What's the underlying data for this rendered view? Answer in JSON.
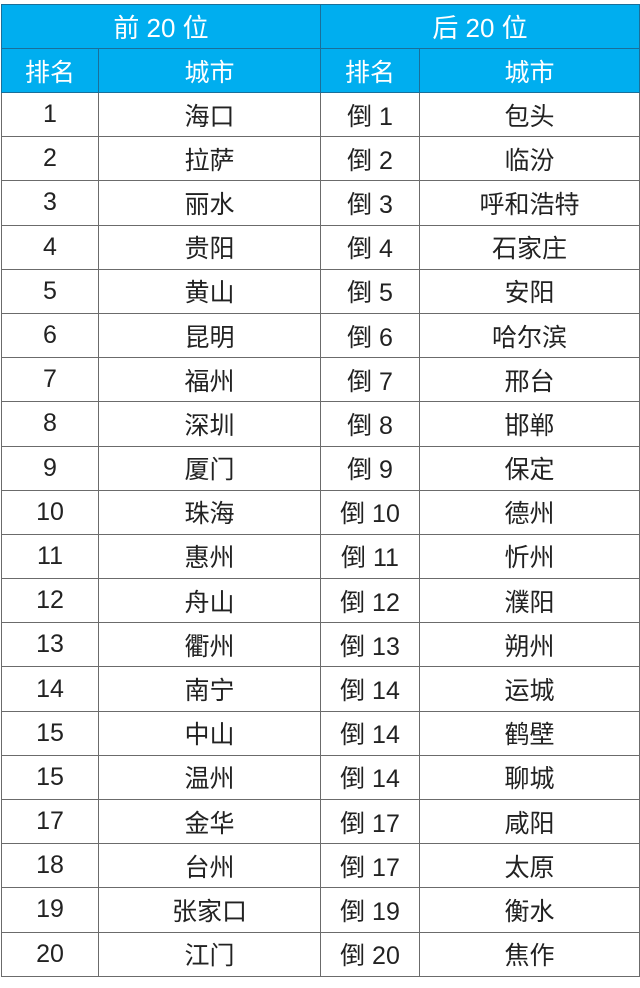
{
  "header": {
    "top_group": "前 20 位",
    "bottom_group": "后 20 位",
    "rank_label": "排名",
    "city_label": "城市"
  },
  "colors": {
    "header_bg": "#00aeef",
    "header_text": "#ffffff"
  },
  "rows": [
    {
      "top_rank": "1",
      "top_city": "海口",
      "bottom_rank": "倒 1",
      "bottom_city": "包头"
    },
    {
      "top_rank": "2",
      "top_city": "拉萨",
      "bottom_rank": "倒 2",
      "bottom_city": "临汾"
    },
    {
      "top_rank": "3",
      "top_city": "丽水",
      "bottom_rank": "倒 3",
      "bottom_city": "呼和浩特"
    },
    {
      "top_rank": "4",
      "top_city": "贵阳",
      "bottom_rank": "倒 4",
      "bottom_city": "石家庄"
    },
    {
      "top_rank": "5",
      "top_city": "黄山",
      "bottom_rank": "倒 5",
      "bottom_city": "安阳"
    },
    {
      "top_rank": "6",
      "top_city": "昆明",
      "bottom_rank": "倒 6",
      "bottom_city": "哈尔滨"
    },
    {
      "top_rank": "7",
      "top_city": "福州",
      "bottom_rank": "倒 7",
      "bottom_city": "邢台"
    },
    {
      "top_rank": "8",
      "top_city": "深圳",
      "bottom_rank": "倒 8",
      "bottom_city": "邯郸"
    },
    {
      "top_rank": "9",
      "top_city": "厦门",
      "bottom_rank": "倒 9",
      "bottom_city": "保定"
    },
    {
      "top_rank": "10",
      "top_city": "珠海",
      "bottom_rank": "倒 10",
      "bottom_city": "德州"
    },
    {
      "top_rank": "11",
      "top_city": "惠州",
      "bottom_rank": "倒 11",
      "bottom_city": "忻州"
    },
    {
      "top_rank": "12",
      "top_city": "舟山",
      "bottom_rank": "倒 12",
      "bottom_city": "濮阳"
    },
    {
      "top_rank": "13",
      "top_city": "衢州",
      "bottom_rank": "倒 13",
      "bottom_city": "朔州"
    },
    {
      "top_rank": "14",
      "top_city": "南宁",
      "bottom_rank": "倒 14",
      "bottom_city": "运城"
    },
    {
      "top_rank": "15",
      "top_city": "中山",
      "bottom_rank": "倒 14",
      "bottom_city": "鹤壁"
    },
    {
      "top_rank": "15",
      "top_city": "温州",
      "bottom_rank": "倒 14",
      "bottom_city": "聊城"
    },
    {
      "top_rank": "17",
      "top_city": "金华",
      "bottom_rank": "倒 17",
      "bottom_city": "咸阳"
    },
    {
      "top_rank": "18",
      "top_city": "台州",
      "bottom_rank": "倒 17",
      "bottom_city": "太原"
    },
    {
      "top_rank": "19",
      "top_city": "张家口",
      "bottom_rank": "倒 19",
      "bottom_city": "衡水"
    },
    {
      "top_rank": "20",
      "top_city": "江门",
      "bottom_rank": "倒 20",
      "bottom_city": "焦作"
    }
  ]
}
